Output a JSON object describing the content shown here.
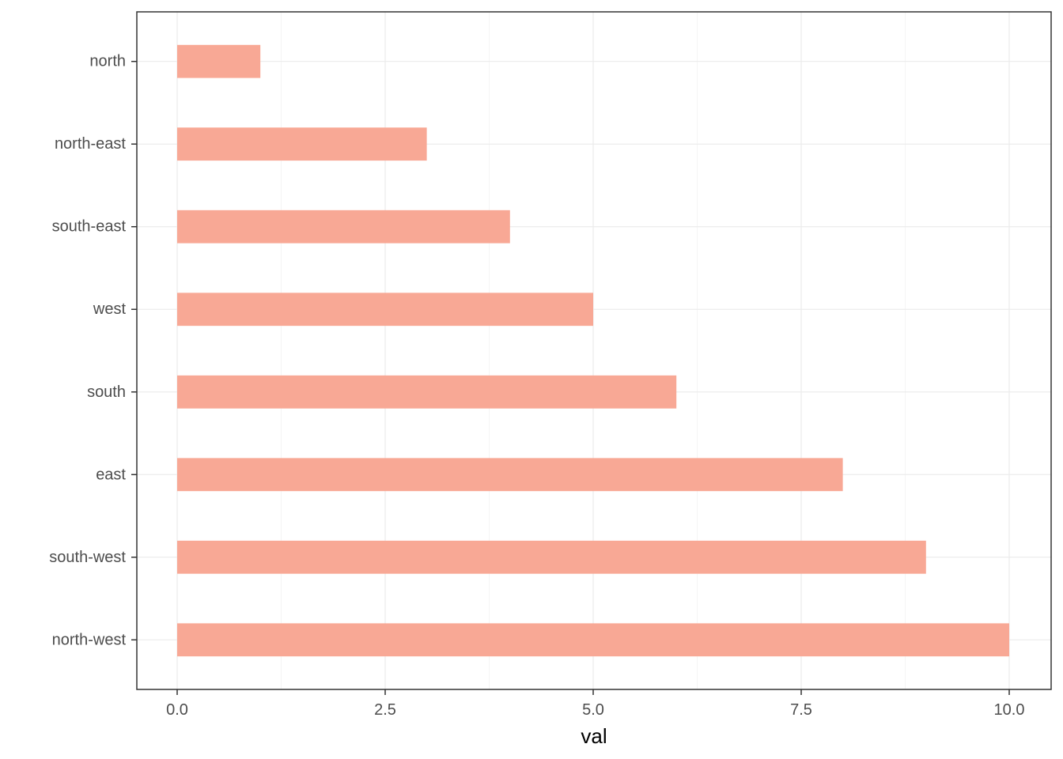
{
  "chart_data": {
    "type": "bar",
    "orientation": "horizontal",
    "categories": [
      "north",
      "north-east",
      "south-east",
      "west",
      "south",
      "east",
      "south-west",
      "north-west"
    ],
    "values": [
      1,
      3,
      4,
      5,
      6,
      8,
      9,
      10
    ],
    "title": "",
    "xlabel": "val",
    "ylabel": "",
    "xlim": [
      0,
      10
    ],
    "x_ticks": [
      "0.0",
      "2.5",
      "5.0",
      "7.5",
      "10.0"
    ],
    "grid": true,
    "legend": "none",
    "colors": {
      "bar": "#f8a895",
      "grid_major": "#ebebeb",
      "grid_minor": "#f5f5f5",
      "panel_border": "#333333",
      "tick_text": "#4d4d4d"
    }
  }
}
